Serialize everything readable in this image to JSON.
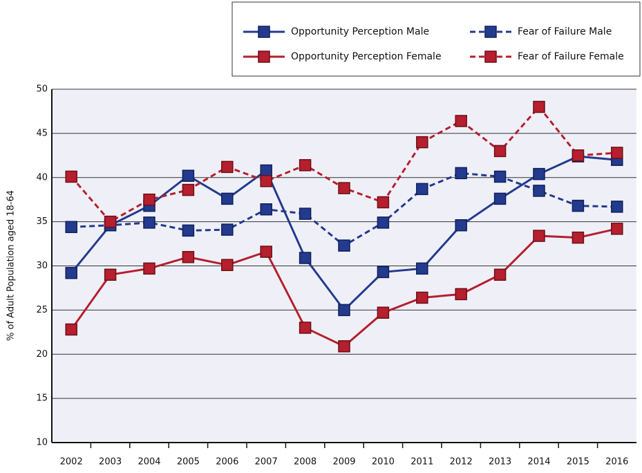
{
  "chart_data": {
    "type": "line",
    "y_label": "% of Adult Population aged 18-64",
    "categories": [
      "2002",
      "2003",
      "2004",
      "2005",
      "2006",
      "2007",
      "2008",
      "2009",
      "2010",
      "2011",
      "2012",
      "2013",
      "2014",
      "2015",
      "2016"
    ],
    "ylim": [
      10,
      50
    ],
    "yticks": [
      10,
      15,
      20,
      25,
      30,
      35,
      40,
      45,
      50
    ],
    "grid": true,
    "series": [
      {
        "name": "Opportunity Perception Male",
        "color": "#233a8e",
        "dashed": false,
        "values": [
          29.2,
          34.6,
          36.8,
          40.2,
          37.6,
          40.8,
          30.9,
          25.0,
          29.3,
          29.7,
          34.6,
          37.6,
          40.4,
          42.4,
          42.0
        ]
      },
      {
        "name": "Opportunity Perception Female",
        "color": "#b51f2e",
        "dashed": false,
        "values": [
          22.8,
          29.0,
          29.7,
          31.0,
          30.1,
          31.6,
          23.0,
          20.9,
          24.7,
          26.4,
          26.8,
          29.0,
          33.4,
          33.2,
          34.2
        ]
      },
      {
        "name": "Fear of Failure Male",
        "color": "#233a8e",
        "dashed": true,
        "values": [
          34.4,
          34.6,
          34.9,
          34.0,
          34.1,
          36.4,
          35.9,
          32.3,
          34.9,
          38.7,
          40.5,
          40.1,
          38.5,
          36.8,
          36.7
        ]
      },
      {
        "name": "Fear of Failure Female",
        "color": "#b51f2e",
        "dashed": true,
        "values": [
          40.1,
          35.0,
          37.5,
          38.6,
          41.2,
          39.6,
          41.4,
          38.8,
          37.2,
          44.0,
          46.4,
          43.0,
          48.0,
          42.5,
          42.8
        ]
      }
    ]
  }
}
